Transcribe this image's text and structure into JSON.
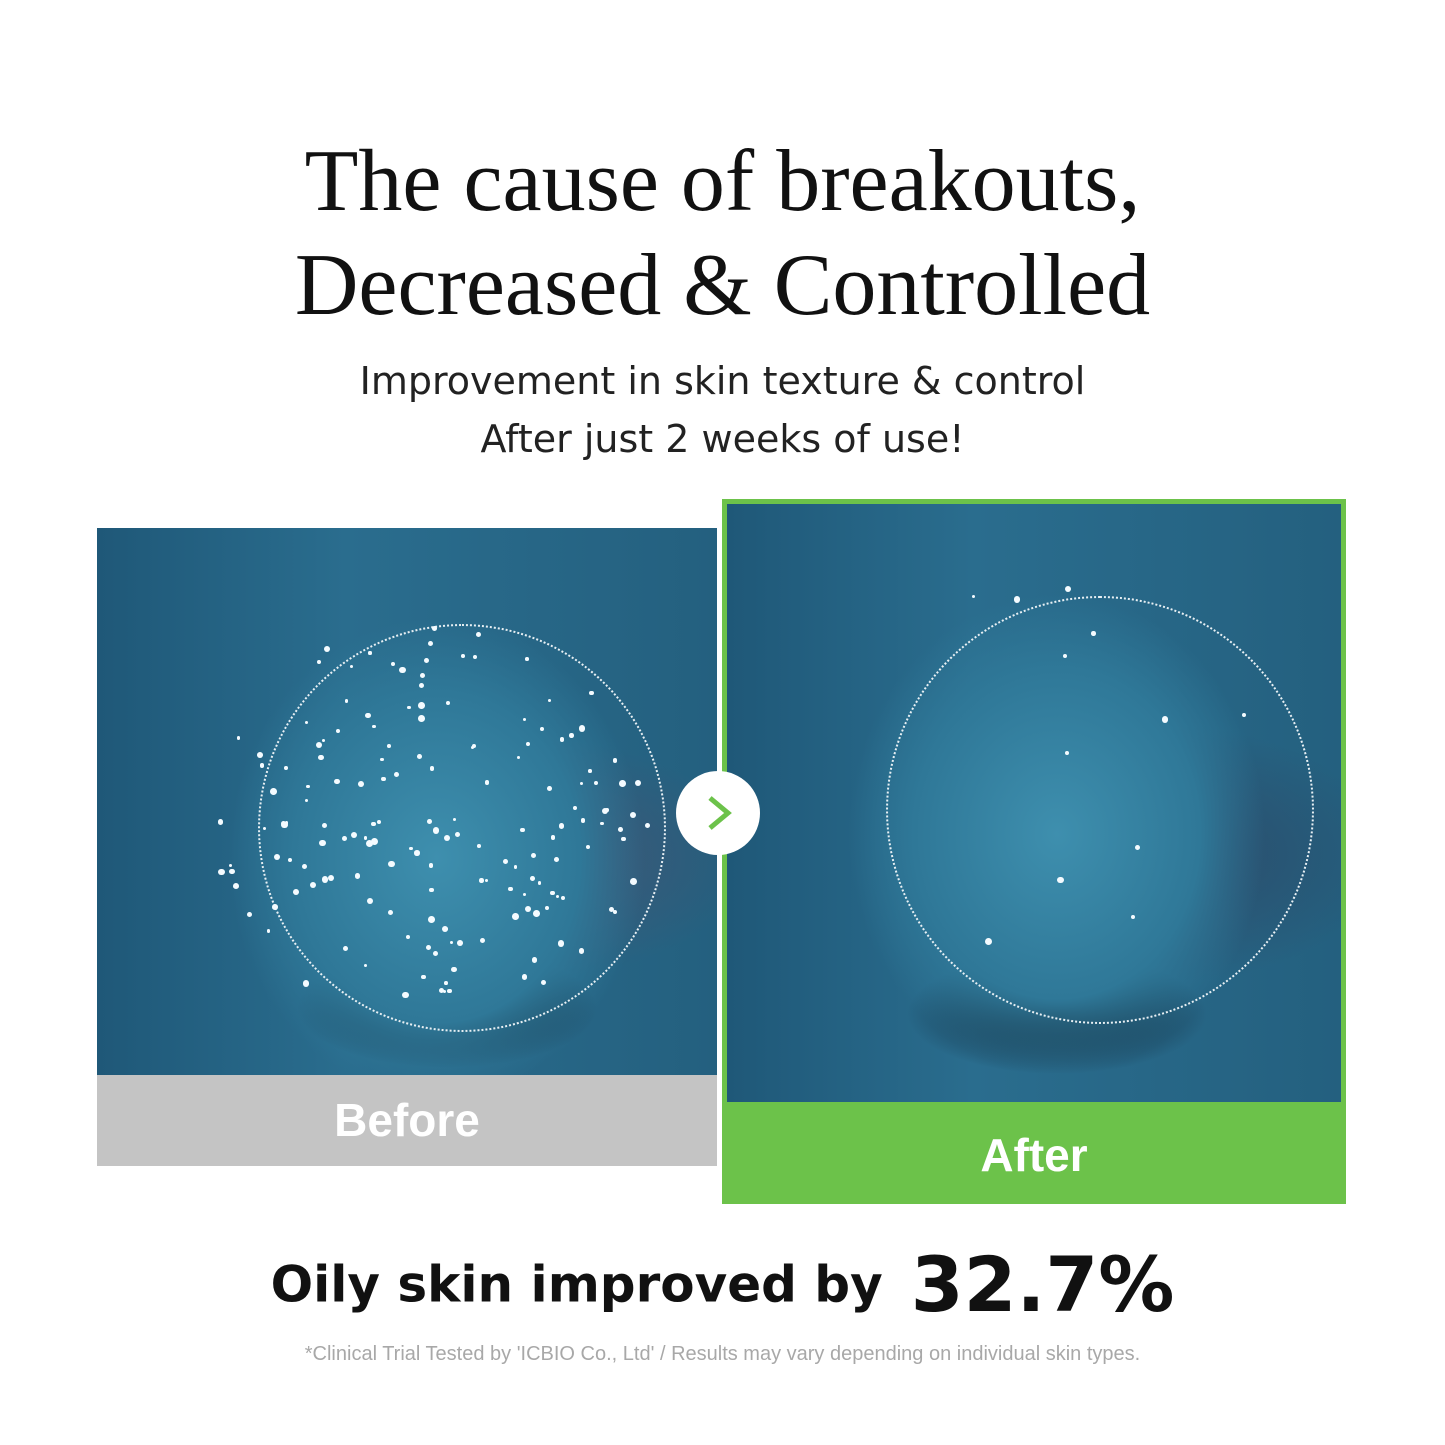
{
  "headline": {
    "line1": "The cause of breakouts,",
    "line2": "Decreased & Controlled"
  },
  "subheadline": {
    "line1": "Improvement in  skin texture & control",
    "line2": "After just 2 weeks of use!"
  },
  "comparison": {
    "before_label": "Before",
    "after_label": "After",
    "arrow_icon": "chevron-right-icon",
    "accent_color": "#6cc24a",
    "before_band_color": "#c4c4c4"
  },
  "result": {
    "label": "Oily skin improved by",
    "value": "32.7%"
  },
  "disclaimer": "*Clinical Trial Tested by 'ICBIO Co., Ltd' / Results may vary depending on individual skin types."
}
